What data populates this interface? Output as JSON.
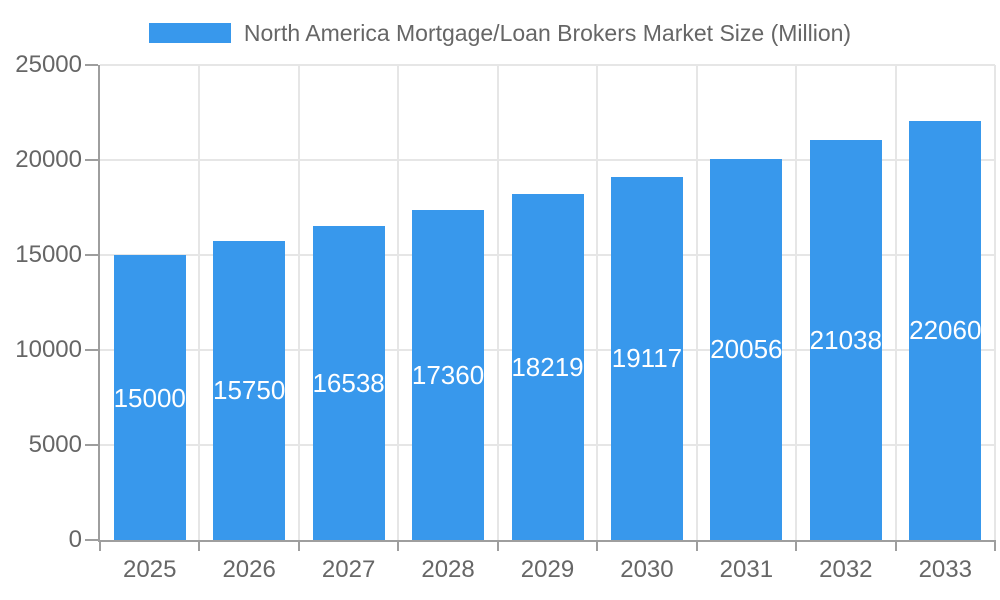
{
  "legend": {
    "label": "North America Mortgage/Loan Brokers Market Size (Million)"
  },
  "colors": {
    "bar": "#3898EC",
    "bar_label": "#FFFFFF",
    "text": "#666666",
    "grid": "#E6E6E6",
    "axis": "#9E9E9E"
  },
  "chart_data": {
    "type": "bar",
    "title": "North America Mortgage/Loan Brokers Market Size (Million)",
    "series_name": "North America Mortgage/Loan Brokers Market Size (Million)",
    "categories": [
      "2025",
      "2026",
      "2027",
      "2028",
      "2029",
      "2030",
      "2031",
      "2032",
      "2033"
    ],
    "values": [
      15000,
      15750,
      16538,
      17360,
      18219,
      19117,
      20056,
      21038,
      22060
    ],
    "value_labels": [
      "15000",
      "15750",
      "16538",
      "17360",
      "18219",
      "19117",
      "20056",
      "21038",
      "22060"
    ],
    "xlabel": "",
    "ylabel": "",
    "ylim": [
      0,
      25000
    ],
    "yticks": [
      0,
      5000,
      10000,
      15000,
      20000,
      25000
    ],
    "ytick_labels": [
      "0",
      "5000",
      "10000",
      "15000",
      "20000",
      "25000"
    ],
    "grid": true,
    "legend_position": "top",
    "value_label_position": "inside-center",
    "bar_percentage": 0.72
  }
}
